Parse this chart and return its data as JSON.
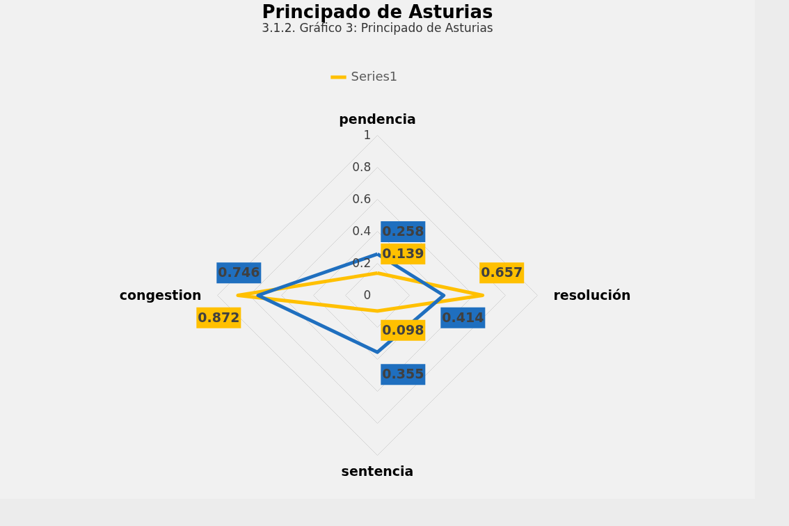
{
  "chart_data": {
    "type": "radar",
    "title": "Principado de Asturias",
    "annotations": [
      "3.1.2. Gráfico 3: Principado de Asturias"
    ],
    "categories": [
      "pendencia",
      "resolución",
      "sentencia",
      "congestion"
    ],
    "series": [
      {
        "name": "Series1",
        "color": "#ffc000",
        "values": [
          0.139,
          0.657,
          0.098,
          0.872
        ]
      },
      {
        "color": "#1f6fbf",
        "values": [
          0.258,
          0.414,
          0.355,
          0.746
        ]
      }
    ],
    "ylim": [
      0,
      1
    ],
    "yticks": [
      0,
      0.2,
      0.4,
      0.6,
      0.8,
      1
    ],
    "grid": true,
    "legend": "top",
    "data_labels": true,
    "marker": "none"
  }
}
